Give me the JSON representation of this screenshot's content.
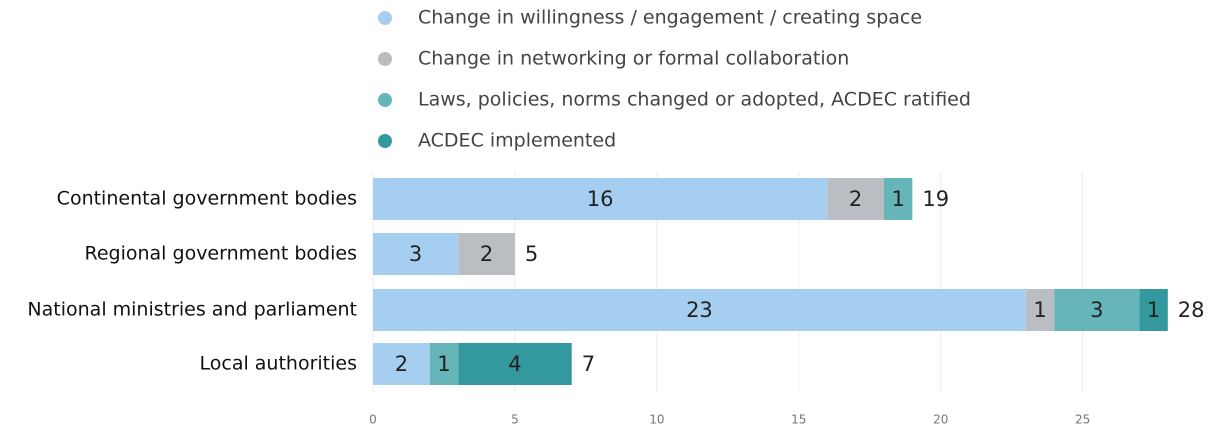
{
  "chart_data": {
    "type": "stacked_barh",
    "categories": [
      "Continental government bodies",
      "Regional government bodies",
      "National ministries and parliament",
      "Local authorities"
    ],
    "series": [
      {
        "name": "Change in willingness / engagement / creating space",
        "color": "#a6cef1",
        "values": [
          16,
          3,
          23,
          2
        ]
      },
      {
        "name": "Change in networking or formal collaboration",
        "color": "#babdc2",
        "values": [
          2,
          2,
          1,
          0
        ]
      },
      {
        "name": "Laws, policies, norms changed or adopted, ACDEC ratified",
        "color": "#66b6b9",
        "values": [
          1,
          0,
          3,
          1
        ]
      },
      {
        "name": "ACDEC implemented",
        "color": "#34999e",
        "values": [
          0,
          0,
          1,
          4
        ]
      }
    ],
    "totals": [
      19,
      5,
      28,
      7
    ],
    "xlim": [
      0,
      28.5
    ],
    "xticks": [
      0,
      5,
      10,
      15,
      20,
      25
    ],
    "grid": true,
    "legend": "top"
  }
}
